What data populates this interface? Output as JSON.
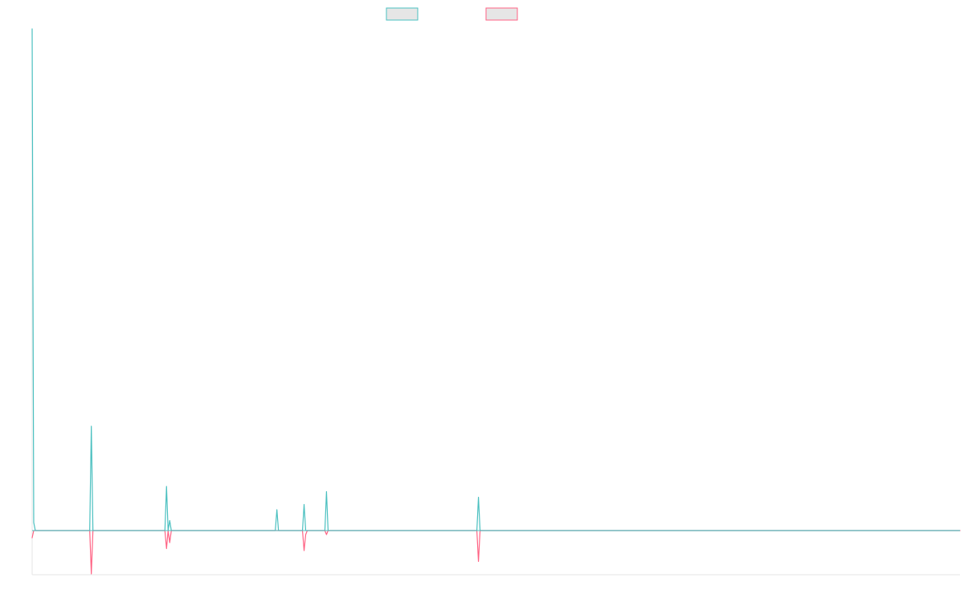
{
  "chart_data": {
    "type": "line",
    "title": "",
    "xlabel": "",
    "ylabel": "",
    "x_axis": {
      "visible_ticks": false,
      "range": [
        0,
        580
      ]
    },
    "y_axis": {
      "visible_ticks": false,
      "range": [
        -1.1,
        12.6
      ]
    },
    "grid": false,
    "legend": {
      "placement": "top-center",
      "items": [
        {
          "name": "",
          "stroke": "#4BC0C0",
          "fill": "#E6E6E6"
        },
        {
          "name": "",
          "stroke": "#FF6384",
          "fill": "#E6E6E6"
        }
      ]
    },
    "series": [
      {
        "name": "",
        "color": "#4BC0C0",
        "points": [
          [
            0,
            12.5
          ],
          [
            1,
            0.2
          ],
          [
            2,
            0
          ],
          [
            36,
            0
          ],
          [
            37,
            2.6
          ],
          [
            38,
            0
          ],
          [
            83,
            0
          ],
          [
            84,
            1.1
          ],
          [
            85,
            0
          ],
          [
            86,
            0.25
          ],
          [
            87,
            0
          ],
          [
            152,
            0
          ],
          [
            153,
            0.52
          ],
          [
            154,
            0
          ],
          [
            169,
            0
          ],
          [
            170,
            0.65
          ],
          [
            171,
            0
          ],
          [
            183,
            0
          ],
          [
            184,
            0.97
          ],
          [
            185,
            0
          ],
          [
            278,
            0
          ],
          [
            279,
            0.83
          ],
          [
            280,
            0
          ],
          [
            580,
            0
          ]
        ]
      },
      {
        "name": "",
        "color": "#FF6384",
        "points": [
          [
            0,
            -0.18
          ],
          [
            1,
            0
          ],
          [
            2,
            0
          ],
          [
            36,
            0
          ],
          [
            37,
            -1.08
          ],
          [
            38,
            0
          ],
          [
            83,
            0
          ],
          [
            84,
            -0.45
          ],
          [
            85,
            0
          ],
          [
            86,
            -0.3
          ],
          [
            87,
            0
          ],
          [
            169,
            0
          ],
          [
            170,
            -0.5
          ],
          [
            171,
            -0.1
          ],
          [
            172,
            0
          ],
          [
            183,
            0
          ],
          [
            184,
            -0.1
          ],
          [
            185,
            0
          ],
          [
            278,
            0
          ],
          [
            279,
            -0.77
          ],
          [
            280,
            0
          ],
          [
            580,
            0
          ]
        ]
      }
    ]
  }
}
